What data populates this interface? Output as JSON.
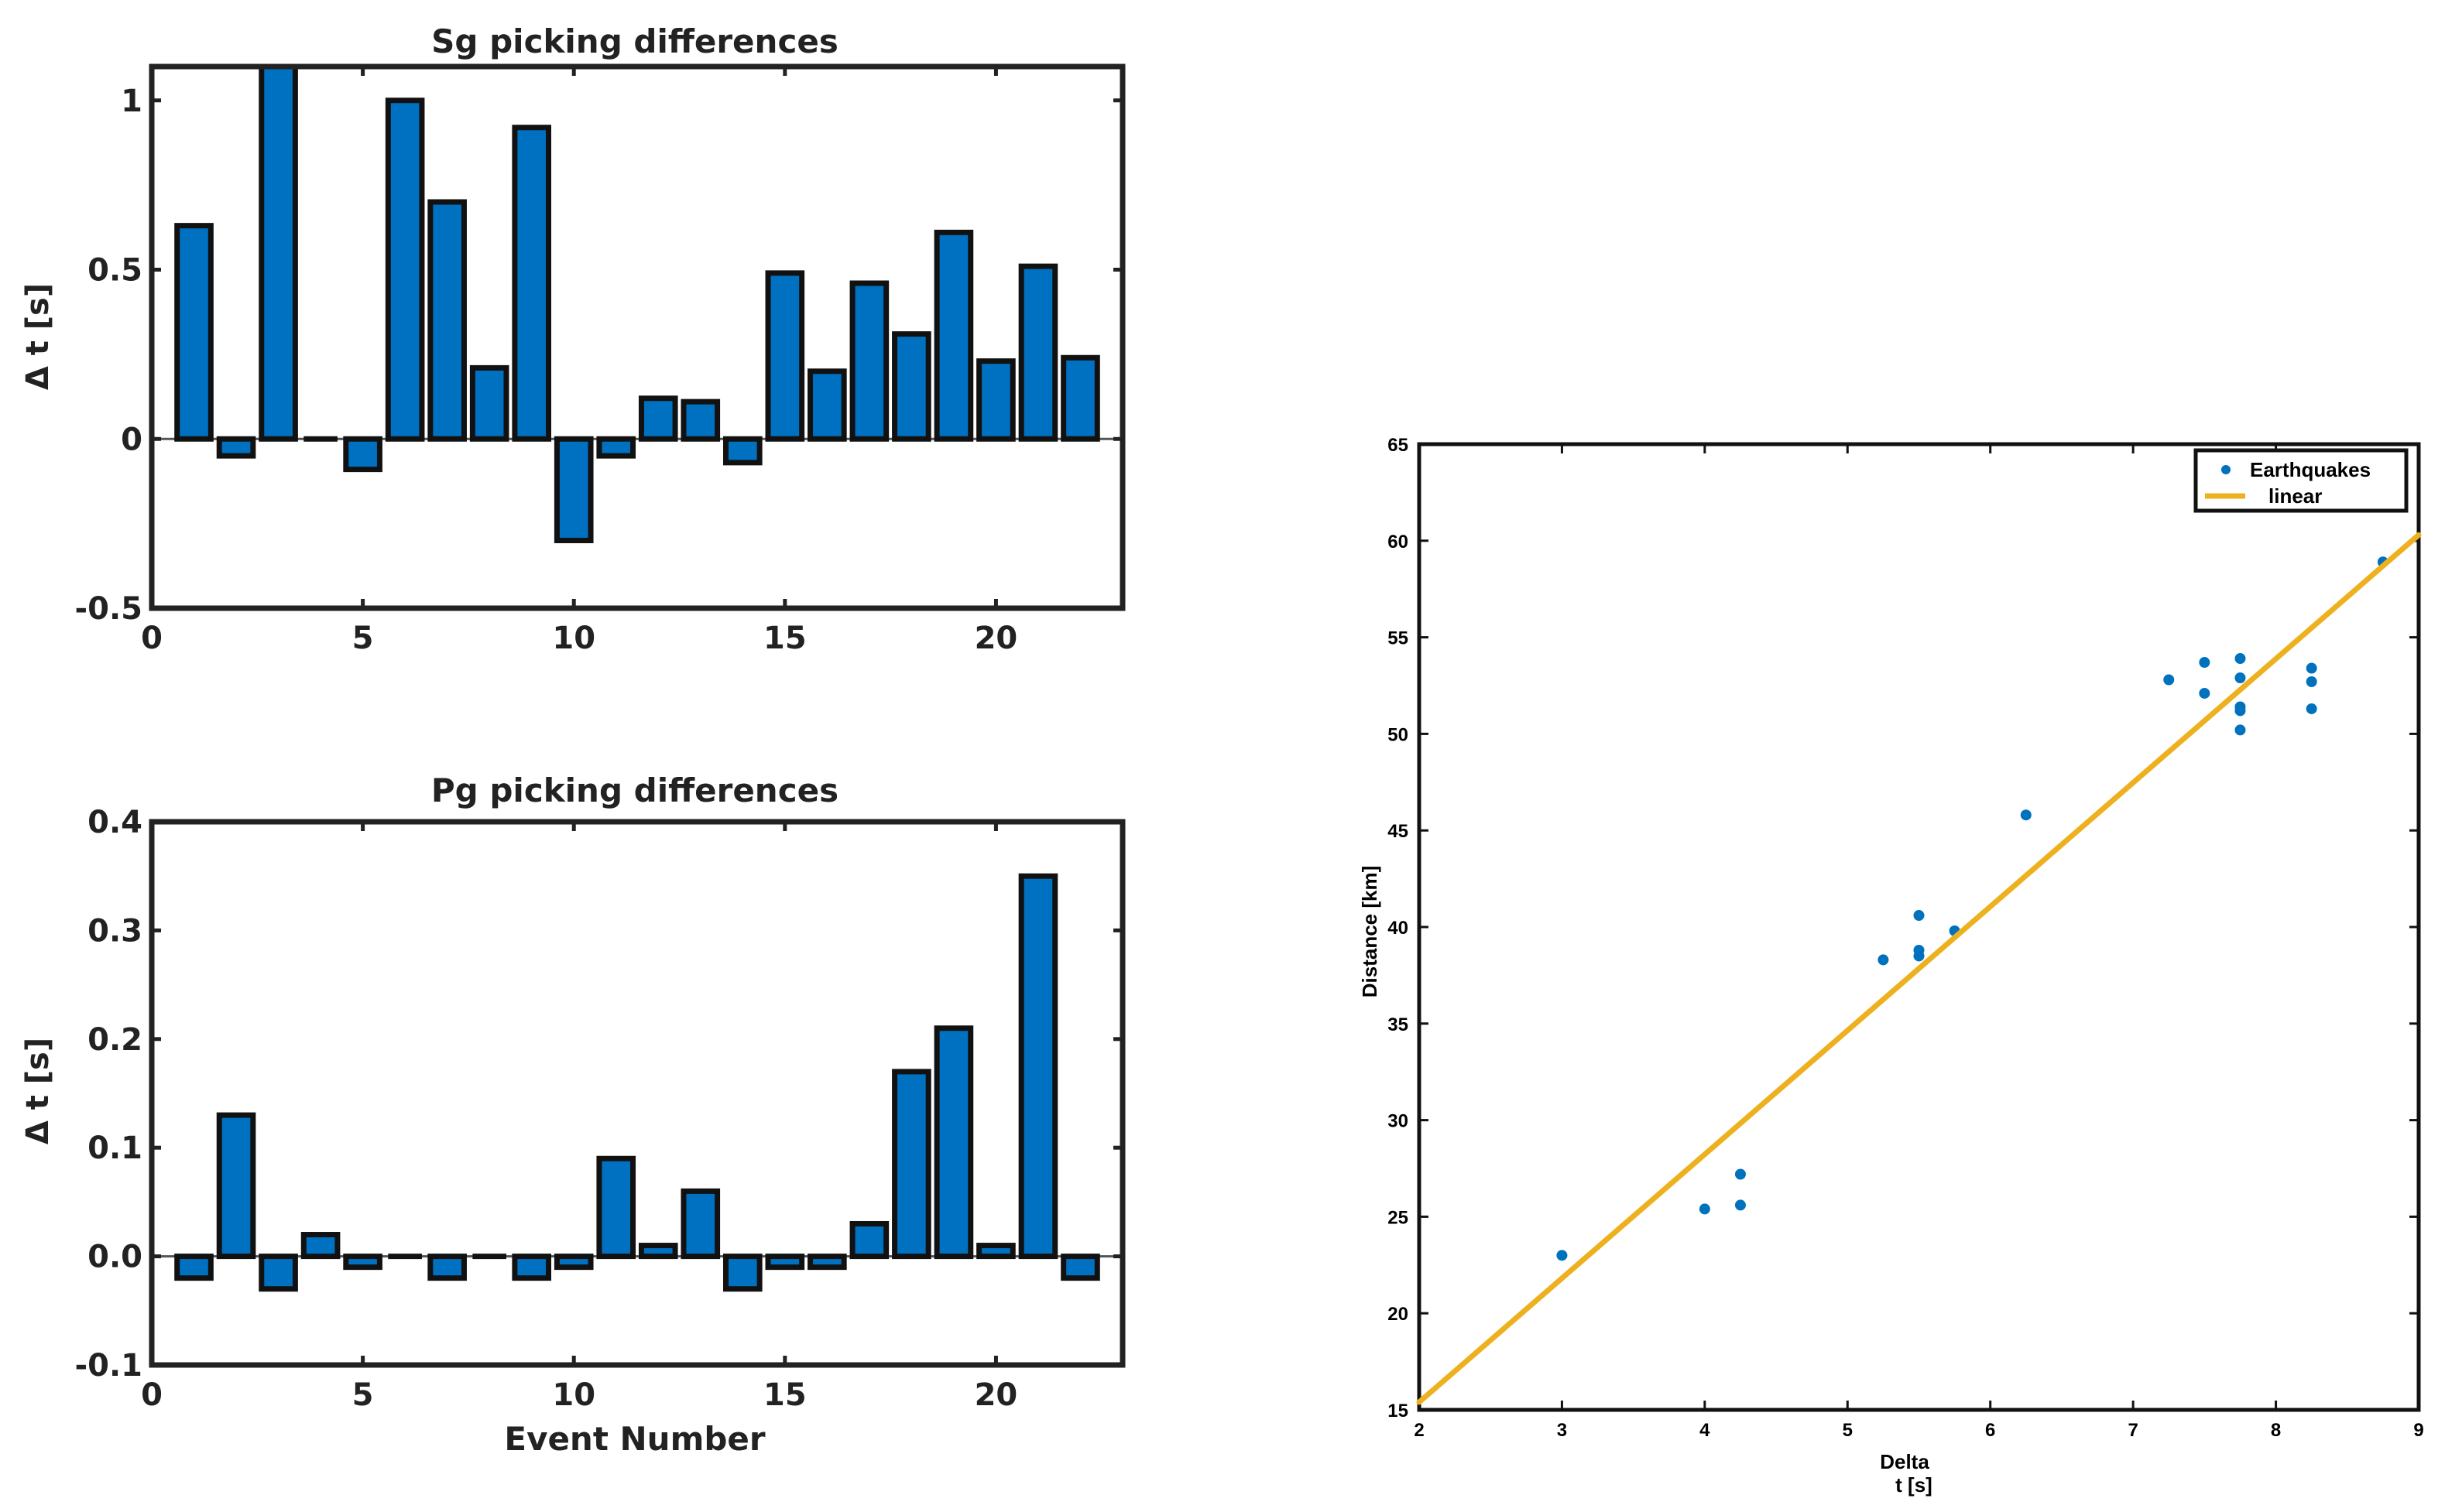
{
  "colors": {
    "bar_fill": "#0070c0",
    "bar_edge": "#111111",
    "axis": "#222222",
    "scatter": "#0072bd",
    "fit_line": "#edb120"
  },
  "chart_data": [
    {
      "id": "sg",
      "type": "bar",
      "title": "Sg picking differences",
      "xlabel": "",
      "ylabel": "Δ t [s]",
      "xlim": [
        0,
        23
      ],
      "ylim": [
        -0.5,
        1.1
      ],
      "xticks": [
        0,
        5,
        10,
        15,
        20
      ],
      "xtick_labels": [
        "0",
        "5",
        "10",
        "15",
        "20"
      ],
      "yticks": [
        -0.5,
        0,
        0.5,
        1
      ],
      "ytick_labels": [
        "-0.5",
        "0",
        "0.5",
        "1"
      ],
      "categories": [
        1,
        2,
        3,
        4,
        5,
        6,
        7,
        8,
        9,
        10,
        11,
        12,
        13,
        14,
        15,
        16,
        17,
        18,
        19,
        20,
        21,
        22
      ],
      "values": [
        0.63,
        -0.05,
        1.1,
        0,
        -0.09,
        1.0,
        0.7,
        0.21,
        0.92,
        -0.3,
        -0.05,
        0.12,
        0.11,
        -0.07,
        0.49,
        0.2,
        0.46,
        0.31,
        0.61,
        0.23,
        0.51,
        0.24
      ]
    },
    {
      "id": "pg",
      "type": "bar",
      "title": "Pg picking differences",
      "xlabel": "Event Number",
      "ylabel": "Δ t [s]",
      "xlim": [
        0,
        23
      ],
      "ylim": [
        -0.1,
        0.4
      ],
      "xticks": [
        0,
        5,
        10,
        15,
        20
      ],
      "xtick_labels": [
        "0",
        "5",
        "10",
        "15",
        "20"
      ],
      "yticks": [
        -0.1,
        0,
        0.1,
        0.2,
        0.3,
        0.4
      ],
      "ytick_labels": [
        "-0.1",
        "0.0",
        "0.1",
        "0.2",
        "0.3",
        "0.4"
      ],
      "categories": [
        1,
        2,
        3,
        4,
        5,
        6,
        7,
        8,
        9,
        10,
        11,
        12,
        13,
        14,
        15,
        16,
        17,
        18,
        19,
        20,
        21,
        22
      ],
      "values": [
        -0.02,
        0.13,
        -0.03,
        0.02,
        -0.01,
        0,
        -0.02,
        0,
        -0.02,
        -0.01,
        0.09,
        0.01,
        0.06,
        -0.03,
        -0.01,
        -0.01,
        0.03,
        0.17,
        0.21,
        0.01,
        0.35,
        -0.02
      ]
    },
    {
      "id": "dist",
      "type": "scatter",
      "title": "",
      "xlabel_line1": "Delta",
      "xlabel_line2": "t [s]",
      "ylabel": "Distance [km]",
      "xlim": [
        2,
        9
      ],
      "ylim": [
        15,
        65
      ],
      "xticks": [
        2,
        3,
        4,
        5,
        6,
        7,
        8,
        9
      ],
      "xtick_labels": [
        "2",
        "3",
        "4",
        "5",
        "6",
        "7",
        "8",
        "9"
      ],
      "yticks": [
        15,
        20,
        25,
        30,
        35,
        40,
        45,
        50,
        55,
        60,
        65
      ],
      "ytick_labels": [
        "15",
        "20",
        "25",
        "30",
        "35",
        "40",
        "45",
        "50",
        "55",
        "60",
        "65"
      ],
      "legend_position": "top-right",
      "series": [
        {
          "name": "Earthquakes",
          "kind": "scatter",
          "points": [
            [
              3.0,
              23.0
            ],
            [
              4.0,
              25.4
            ],
            [
              4.25,
              25.6
            ],
            [
              4.25,
              27.2
            ],
            [
              5.25,
              38.3
            ],
            [
              5.5,
              38.5
            ],
            [
              5.5,
              38.8
            ],
            [
              5.5,
              40.6
            ],
            [
              5.75,
              39.8
            ],
            [
              6.25,
              45.8
            ],
            [
              7.25,
              52.8
            ],
            [
              7.5,
              52.1
            ],
            [
              7.5,
              53.7
            ],
            [
              7.75,
              50.2
            ],
            [
              7.75,
              51.2
            ],
            [
              7.75,
              51.4
            ],
            [
              7.75,
              52.9
            ],
            [
              7.75,
              53.9
            ],
            [
              8.25,
              51.3
            ],
            [
              8.25,
              52.7
            ],
            [
              8.25,
              53.4
            ],
            [
              8.75,
              58.9
            ]
          ]
        },
        {
          "name": "linear",
          "kind": "line",
          "points": [
            [
              2,
              15.4
            ],
            [
              9,
              60.3
            ]
          ]
        }
      ]
    }
  ]
}
